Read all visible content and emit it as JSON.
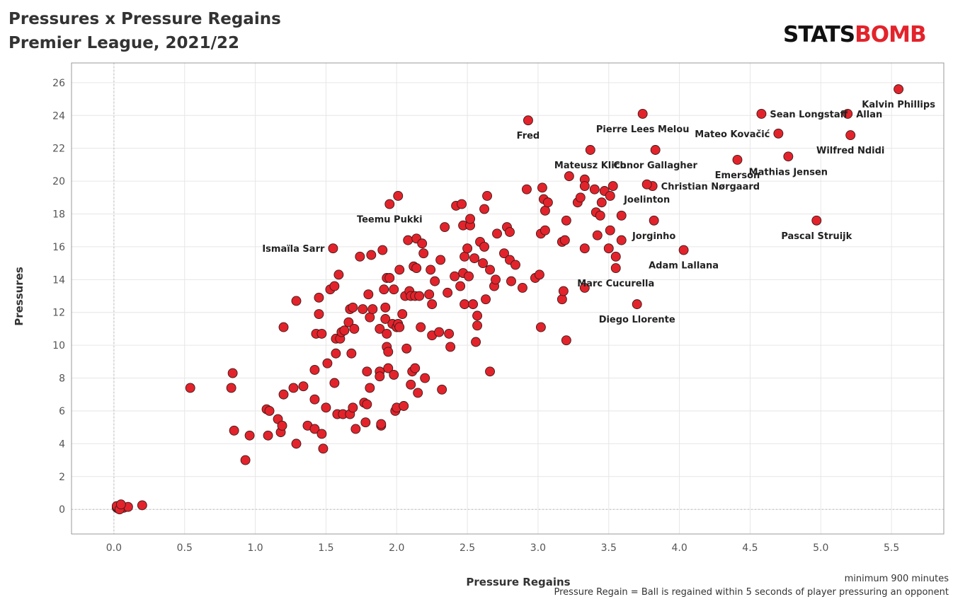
{
  "header": {
    "title_line1": "Pressures x Pressure Regains",
    "title_line2": "Premier League, 2021/22"
  },
  "logo": {
    "text_left": "STATS",
    "text_right": "BOMB",
    "color_left": "#111111",
    "color_right": "#e3232b"
  },
  "notes": {
    "line1": "minimum 900 minutes",
    "line2": "Pressure Regain = Ball is regained within 5 seconds of player pressuring an opponent"
  },
  "colors": {
    "point_fill": "#e3232b",
    "point_stroke": "#3a1a1a",
    "grid": "#e6e6e6",
    "frame": "#999999",
    "ref_line": "#bbbbbb"
  },
  "chart_data": {
    "type": "scatter",
    "title": "Pressures x Pressure Regains",
    "subtitle": "Premier League, 2021/22",
    "xlabel": "Pressure Regains",
    "ylabel": "Pressures",
    "xlim": [
      -0.3,
      5.87
    ],
    "ylim": [
      -1.5,
      27.2
    ],
    "xticks": [
      "0.0",
      "0.5",
      "1.0",
      "1.5",
      "2.0",
      "2.5",
      "3.0",
      "3.5",
      "4.0",
      "4.5",
      "5.0",
      "5.5"
    ],
    "yticks": [
      "0",
      "2",
      "4",
      "6",
      "8",
      "10",
      "12",
      "14",
      "16",
      "18",
      "20",
      "22",
      "24",
      "26"
    ],
    "grid": true,
    "labeled_points": [
      {
        "name": "Kalvin Phillips",
        "x": 5.55,
        "y": 25.6,
        "label_pos": "below"
      },
      {
        "name": "Sean Longstaff",
        "x": 4.58,
        "y": 24.1,
        "label_pos": "right"
      },
      {
        "name": "Allan",
        "x": 5.19,
        "y": 24.1,
        "label_pos": "right"
      },
      {
        "name": "Pierre Lees Melou",
        "x": 3.74,
        "y": 24.1,
        "label_pos": "below"
      },
      {
        "name": "Fred",
        "x": 2.93,
        "y": 23.7,
        "label_pos": "below"
      },
      {
        "name": "Mateo Kovačić",
        "x": 4.7,
        "y": 22.9,
        "label_pos": "left"
      },
      {
        "name": "Wilfred Ndidi",
        "x": 5.21,
        "y": 22.8,
        "label_pos": "below"
      },
      {
        "name": "Mateusz Klich",
        "x": 3.37,
        "y": 21.9,
        "label_pos": "below"
      },
      {
        "name": "Conor Gallagher",
        "x": 3.83,
        "y": 21.9,
        "label_pos": "below"
      },
      {
        "name": "Emerson",
        "x": 4.41,
        "y": 21.3,
        "label_pos": "below"
      },
      {
        "name": "Mathias Jensen",
        "x": 4.77,
        "y": 21.5,
        "label_pos": "below"
      },
      {
        "name": "Christian Nørgaard",
        "x": 3.81,
        "y": 19.7,
        "label_pos": "right"
      },
      {
        "name": "Joelinton",
        "x": 3.77,
        "y": 19.8,
        "label_pos": "below"
      },
      {
        "name": "Teemu Pukki",
        "x": 1.95,
        "y": 18.6,
        "label_pos": "below"
      },
      {
        "name": "Pascal Struijk",
        "x": 4.97,
        "y": 17.6,
        "label_pos": "below"
      },
      {
        "name": "Jorginho",
        "x": 3.82,
        "y": 17.6,
        "label_pos": "below"
      },
      {
        "name": "Ismaïla Sarr",
        "x": 1.55,
        "y": 15.9,
        "label_pos": "left"
      },
      {
        "name": "Adam Lallana",
        "x": 4.03,
        "y": 15.8,
        "label_pos": "below"
      },
      {
        "name": "Marc Cucurella",
        "x": 3.55,
        "y": 14.7,
        "label_pos": "below"
      },
      {
        "name": "Diego Llorente",
        "x": 3.7,
        "y": 12.5,
        "label_pos": "below"
      }
    ],
    "points": [
      [
        0.02,
        0.1
      ],
      [
        0.03,
        0.05
      ],
      [
        0.05,
        0.2
      ],
      [
        0.07,
        0.1
      ],
      [
        0.1,
        0.15
      ],
      [
        0.02,
        0.2
      ],
      [
        0.04,
        0.0
      ],
      [
        0.2,
        0.25
      ],
      [
        0.05,
        0.3
      ],
      [
        0.54,
        7.4
      ],
      [
        0.84,
        8.3
      ],
      [
        0.83,
        7.4
      ],
      [
        0.85,
        4.8
      ],
      [
        0.93,
        3.0
      ],
      [
        0.96,
        4.5
      ],
      [
        1.08,
        6.1
      ],
      [
        1.09,
        4.5
      ],
      [
        1.1,
        6.0
      ],
      [
        1.16,
        5.5
      ],
      [
        1.18,
        4.7
      ],
      [
        1.19,
        5.1
      ],
      [
        1.2,
        11.1
      ],
      [
        1.2,
        7.0
      ],
      [
        1.27,
        7.4
      ],
      [
        1.29,
        12.7
      ],
      [
        1.29,
        4.0
      ],
      [
        1.34,
        7.5
      ],
      [
        1.37,
        5.1
      ],
      [
        1.42,
        6.7
      ],
      [
        1.42,
        4.9
      ],
      [
        1.42,
        8.5
      ],
      [
        1.43,
        10.7
      ],
      [
        1.45,
        11.9
      ],
      [
        1.45,
        12.9
      ],
      [
        1.47,
        10.7
      ],
      [
        1.47,
        4.6
      ],
      [
        1.48,
        3.7
      ],
      [
        1.5,
        6.2
      ],
      [
        1.51,
        8.9
      ],
      [
        1.53,
        13.4
      ],
      [
        1.56,
        13.6
      ],
      [
        1.56,
        7.7
      ],
      [
        1.57,
        10.4
      ],
      [
        1.57,
        9.5
      ],
      [
        1.58,
        5.8
      ],
      [
        1.59,
        14.3
      ],
      [
        1.6,
        10.4
      ],
      [
        1.61,
        10.8
      ],
      [
        1.62,
        5.8
      ],
      [
        1.63,
        10.9
      ],
      [
        1.66,
        11.4
      ],
      [
        1.67,
        12.2
      ],
      [
        1.67,
        5.8
      ],
      [
        1.68,
        9.5
      ],
      [
        1.69,
        12.3
      ],
      [
        1.69,
        6.2
      ],
      [
        1.7,
        11.0
      ],
      [
        1.71,
        4.9
      ],
      [
        1.74,
        15.4
      ],
      [
        1.76,
        12.2
      ],
      [
        1.77,
        6.5
      ],
      [
        1.78,
        5.3
      ],
      [
        1.79,
        6.4
      ],
      [
        1.79,
        8.4
      ],
      [
        1.8,
        13.1
      ],
      [
        1.81,
        11.7
      ],
      [
        1.81,
        7.4
      ],
      [
        1.82,
        15.5
      ],
      [
        1.83,
        12.2
      ],
      [
        1.88,
        8.4
      ],
      [
        1.88,
        11.0
      ],
      [
        1.88,
        8.1
      ],
      [
        1.89,
        5.1
      ],
      [
        1.89,
        5.2
      ],
      [
        1.9,
        15.8
      ],
      [
        1.91,
        13.4
      ],
      [
        1.92,
        11.6
      ],
      [
        1.92,
        12.3
      ],
      [
        1.93,
        14.1
      ],
      [
        1.93,
        9.9
      ],
      [
        1.93,
        10.7
      ],
      [
        1.94,
        8.6
      ],
      [
        1.94,
        9.6
      ],
      [
        1.95,
        14.1
      ],
      [
        1.97,
        11.3
      ],
      [
        1.98,
        13.4
      ],
      [
        1.98,
        8.2
      ],
      [
        1.99,
        6.0
      ],
      [
        2.0,
        6.2
      ],
      [
        2.0,
        11.1
      ],
      [
        2.01,
        19.1
      ],
      [
        2.01,
        11.3
      ],
      [
        2.02,
        14.6
      ],
      [
        2.02,
        11.1
      ],
      [
        2.04,
        11.9
      ],
      [
        2.05,
        6.3
      ],
      [
        2.06,
        13.0
      ],
      [
        2.07,
        9.8
      ],
      [
        2.08,
        16.4
      ],
      [
        2.09,
        13.3
      ],
      [
        2.1,
        13.0
      ],
      [
        2.1,
        7.6
      ],
      [
        2.11,
        8.4
      ],
      [
        2.12,
        14.8
      ],
      [
        2.13,
        8.6
      ],
      [
        2.13,
        13.0
      ],
      [
        2.14,
        16.5
      ],
      [
        2.14,
        14.7
      ],
      [
        2.15,
        7.1
      ],
      [
        2.16,
        13.0
      ],
      [
        2.17,
        11.1
      ],
      [
        2.18,
        16.2
      ],
      [
        2.19,
        15.6
      ],
      [
        2.2,
        8.0
      ],
      [
        2.23,
        13.1
      ],
      [
        2.24,
        14.6
      ],
      [
        2.25,
        12.5
      ],
      [
        2.25,
        10.6
      ],
      [
        2.27,
        13.9
      ],
      [
        2.3,
        10.8
      ],
      [
        2.31,
        15.2
      ],
      [
        2.32,
        7.3
      ],
      [
        2.34,
        17.2
      ],
      [
        2.36,
        13.2
      ],
      [
        2.37,
        10.7
      ],
      [
        2.38,
        9.9
      ],
      [
        2.41,
        14.2
      ],
      [
        2.42,
        18.5
      ],
      [
        2.45,
        13.6
      ],
      [
        2.46,
        18.6
      ],
      [
        2.47,
        17.3
      ],
      [
        2.47,
        14.4
      ],
      [
        2.48,
        12.5
      ],
      [
        2.48,
        15.4
      ],
      [
        2.5,
        15.9
      ],
      [
        2.51,
        14.2
      ],
      [
        2.52,
        17.3
      ],
      [
        2.52,
        17.7
      ],
      [
        2.54,
        12.5
      ],
      [
        2.55,
        15.3
      ],
      [
        2.56,
        10.2
      ],
      [
        2.57,
        11.2
      ],
      [
        2.57,
        11.8
      ],
      [
        2.59,
        16.3
      ],
      [
        2.61,
        15.0
      ],
      [
        2.62,
        16.0
      ],
      [
        2.62,
        18.3
      ],
      [
        2.63,
        12.8
      ],
      [
        2.64,
        19.1
      ],
      [
        2.66,
        14.6
      ],
      [
        2.66,
        8.4
      ],
      [
        2.69,
        13.6
      ],
      [
        2.7,
        14.0
      ],
      [
        2.71,
        16.8
      ],
      [
        2.76,
        15.6
      ],
      [
        2.78,
        17.2
      ],
      [
        2.8,
        16.9
      ],
      [
        2.8,
        15.2
      ],
      [
        2.81,
        13.9
      ],
      [
        2.84,
        14.9
      ],
      [
        2.89,
        13.5
      ],
      [
        2.92,
        19.5
      ],
      [
        2.98,
        14.1
      ],
      [
        3.01,
        14.3
      ],
      [
        3.02,
        16.8
      ],
      [
        3.02,
        11.1
      ],
      [
        3.03,
        19.6
      ],
      [
        3.04,
        18.9
      ],
      [
        3.05,
        17.0
      ],
      [
        3.05,
        18.2
      ],
      [
        3.07,
        18.7
      ],
      [
        3.17,
        16.3
      ],
      [
        3.17,
        12.8
      ],
      [
        3.18,
        13.3
      ],
      [
        3.19,
        16.4
      ],
      [
        3.2,
        17.6
      ],
      [
        3.2,
        10.3
      ],
      [
        3.22,
        20.3
      ],
      [
        3.28,
        18.7
      ],
      [
        3.3,
        19.0
      ],
      [
        3.33,
        20.1
      ],
      [
        3.33,
        19.7
      ],
      [
        3.33,
        15.9
      ],
      [
        3.33,
        13.5
      ],
      [
        3.4,
        19.5
      ],
      [
        3.41,
        18.1
      ],
      [
        3.42,
        16.7
      ],
      [
        3.44,
        17.9
      ],
      [
        3.45,
        18.7
      ],
      [
        3.47,
        19.4
      ],
      [
        3.5,
        15.9
      ],
      [
        3.51,
        17.0
      ],
      [
        3.51,
        19.1
      ],
      [
        3.53,
        19.7
      ],
      [
        3.55,
        15.4
      ],
      [
        3.59,
        17.9
      ],
      [
        3.59,
        16.4
      ]
    ]
  }
}
